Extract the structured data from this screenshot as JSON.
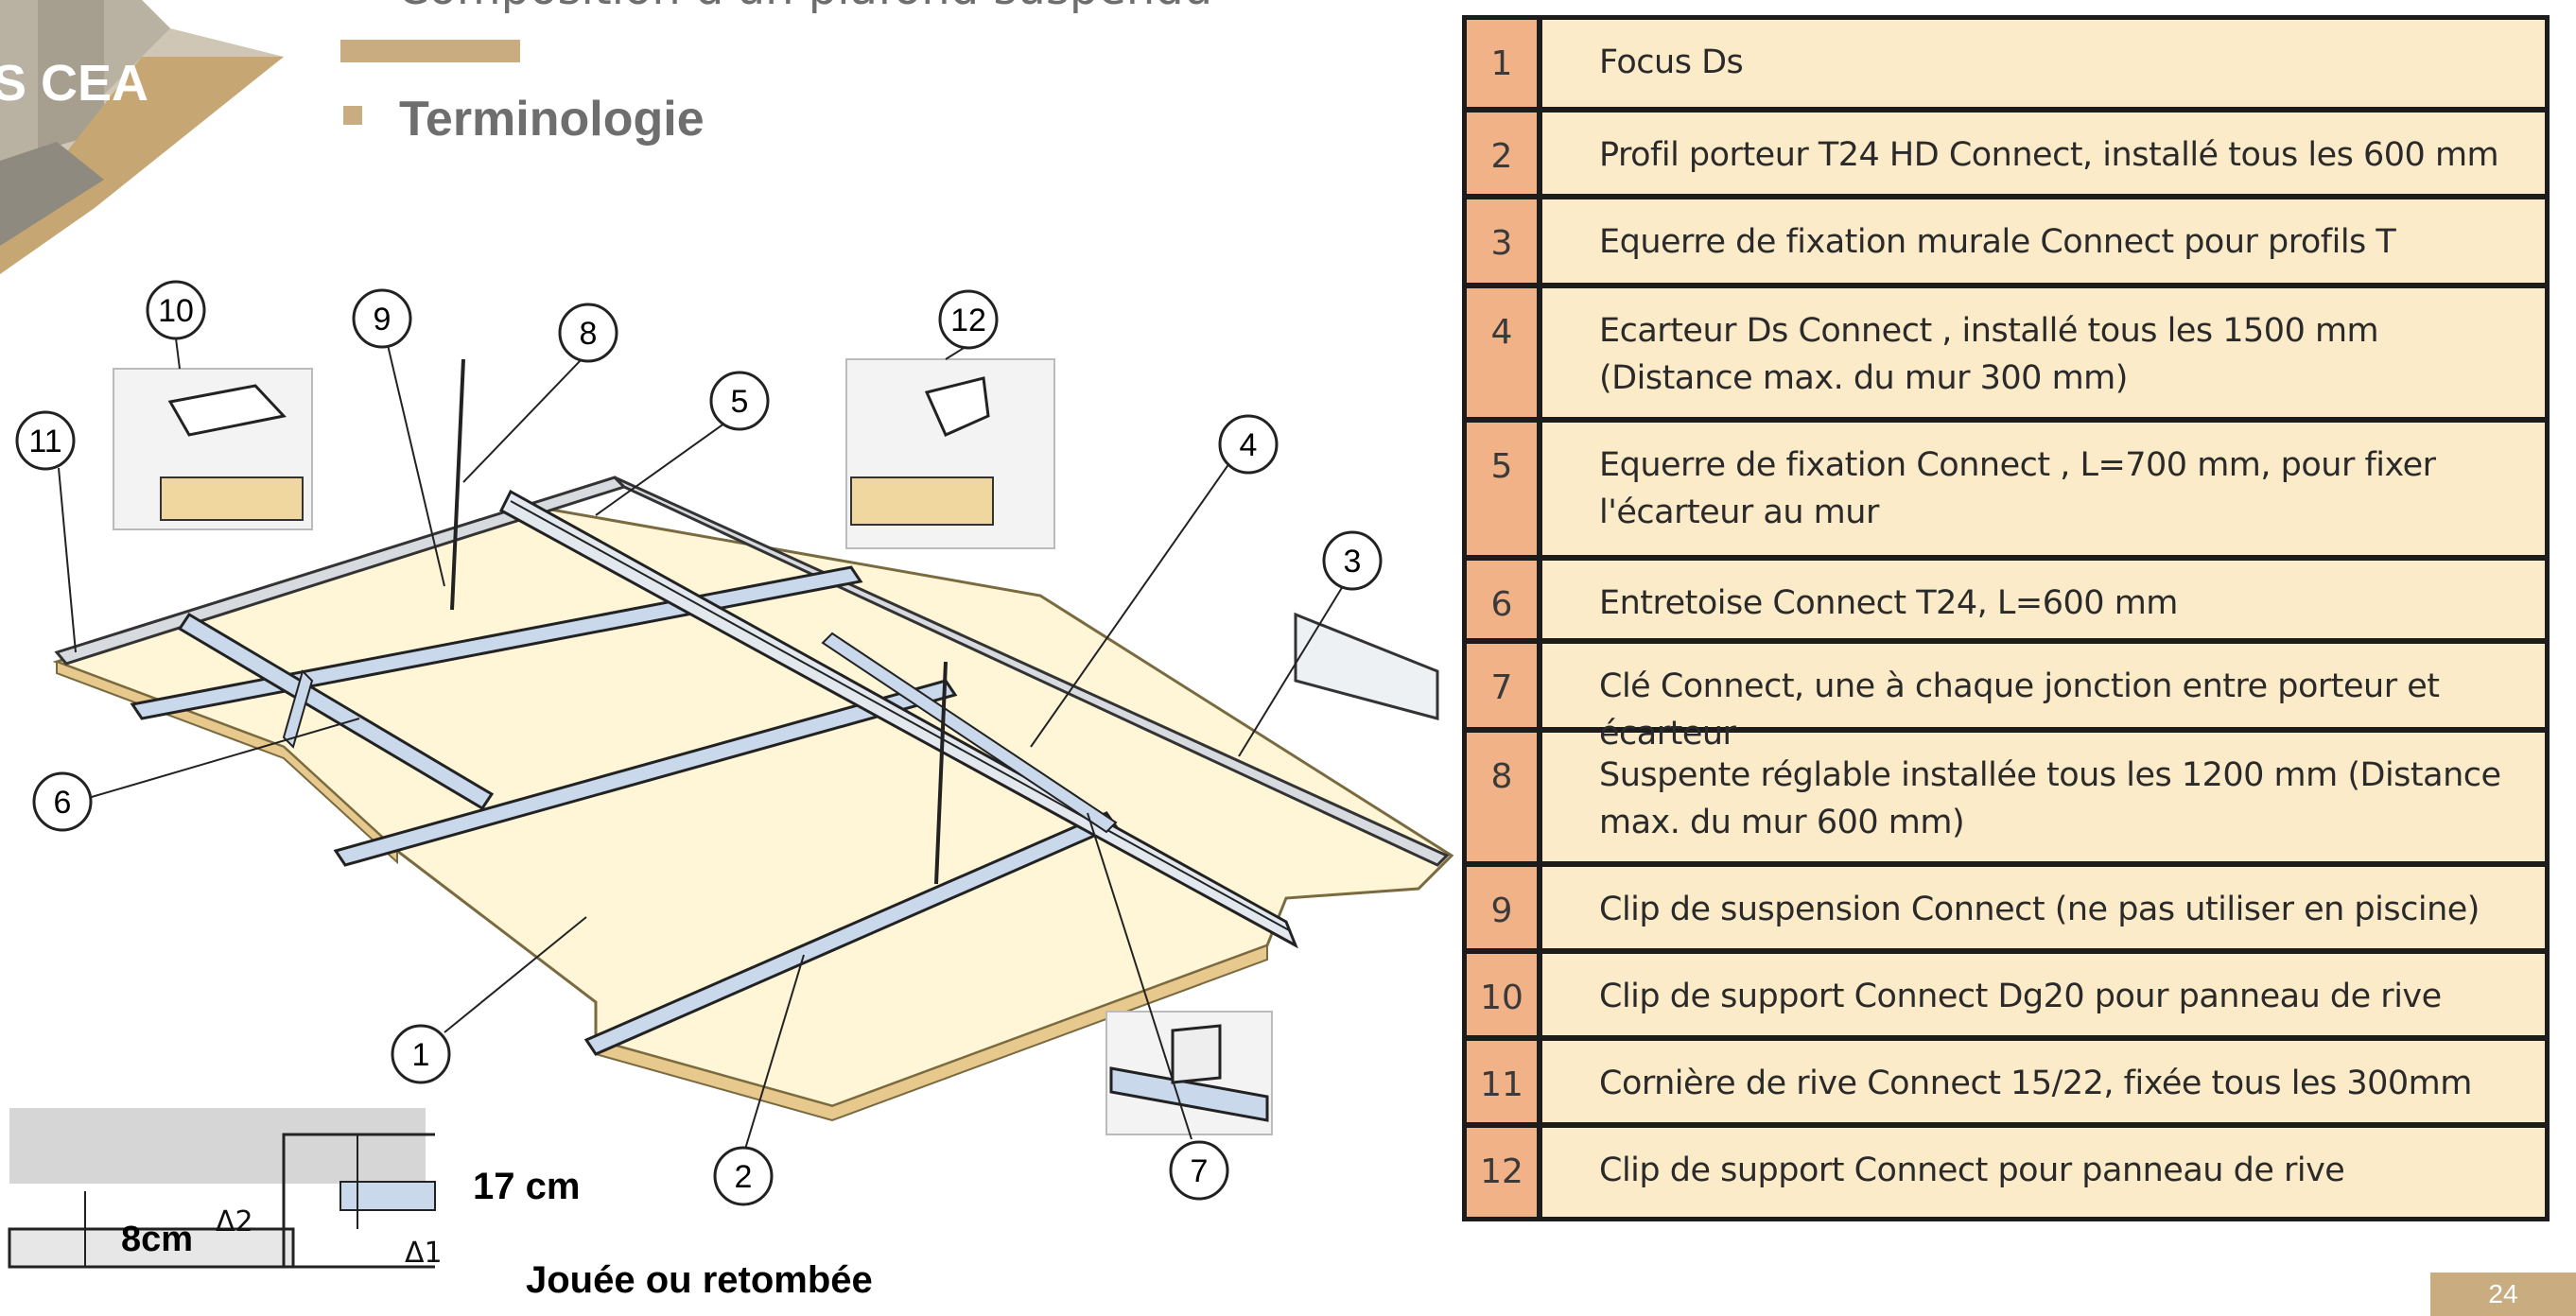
{
  "header": {
    "cut_title": "Composition d'un plafond suspendu",
    "heading": "Terminologie",
    "logo_text": "S CEA"
  },
  "diagram": {
    "callouts": [
      "1",
      "2",
      "3",
      "4",
      "5",
      "6",
      "7",
      "8",
      "9",
      "10",
      "11",
      "12"
    ],
    "dimension_17": "17 cm",
    "dimension_8": "8cm",
    "delta_2": "Δ2",
    "delta_1": "Δ1",
    "caption": "Jouée ou retombée"
  },
  "legend": {
    "rows": [
      {
        "num": "1",
        "text": "Focus Ds"
      },
      {
        "num": "2",
        "text": "Profil porteur T24 HD Connect, installé tous les 600 mm"
      },
      {
        "num": "3",
        "text": "Equerre de fixation murale Connect pour profils T"
      },
      {
        "num": "4",
        "text": "Ecarteur Ds Connect , installé tous les 1500 mm (Distance max. du mur 300 mm)"
      },
      {
        "num": "5",
        "text": "Equerre de fixation Connect , L=700 mm, pour fixer l'écarteur au mur"
      },
      {
        "num": "6",
        "text": "Entretoise Connect T24, L=600 mm"
      },
      {
        "num": "7",
        "text": "Clé Connect, une à chaque jonction entre porteur et écarteur"
      },
      {
        "num": "8",
        "text": "Suspente réglable installée tous les 1200 mm (Distance max. du mur 600 mm)"
      },
      {
        "num": "9",
        "text": "Clip de suspension Connect (ne pas utiliser en piscine)"
      },
      {
        "num": "10",
        "text": "Clip de support Connect Dg20 pour panneau de rive"
      },
      {
        "num": "11",
        "text": "Cornière de rive Connect 15/22, fixée tous les 300mm"
      },
      {
        "num": "12",
        "text": "Clip de support Connect pour panneau de rive"
      }
    ]
  },
  "footer": {
    "page_number": "24"
  },
  "colors": {
    "accent_gold": "#c9ad80",
    "legend_bg": "#fcebc8",
    "legend_num_bg": "#f2b287",
    "border": "#1c1c1c"
  }
}
